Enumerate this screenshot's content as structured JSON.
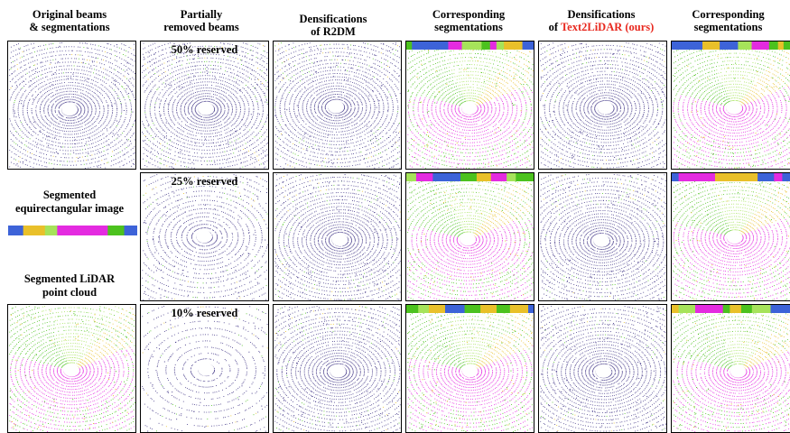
{
  "headers": [
    {
      "line1": "Original beams",
      "line2": "& segmentations"
    },
    {
      "line1": "Partially",
      "line2": "removed beams"
    },
    {
      "line1": "Densifications",
      "line2": "of R2DM"
    },
    {
      "line1": "Corresponding",
      "line2": "segmentations"
    },
    {
      "line1": "Densifications",
      "line2_prefix": "of ",
      "line2_highlight": "Text2LiDAR (ours)"
    },
    {
      "line1": "Corresponding",
      "line2": "segmentations"
    }
  ],
  "rows": [
    {
      "reserved_label": "50% reserved"
    },
    {
      "reserved_label": "25% reserved"
    },
    {
      "reserved_label": "10% reserved"
    }
  ],
  "side": {
    "equirect_line1": "Segmented",
    "equirect_line2": "equirectangular image",
    "pointcloud_line1": "Segmented LiDAR",
    "pointcloud_line2": "point cloud"
  },
  "colors": {
    "highlight": "#e8281e",
    "beam": "#4a3f8c",
    "seg_magenta": "#e42be0",
    "seg_green": "#4cc21e",
    "seg_yellow": "#e9c02a",
    "seg_lime": "#a6e35a",
    "seg_blue": "#3d63d8"
  }
}
